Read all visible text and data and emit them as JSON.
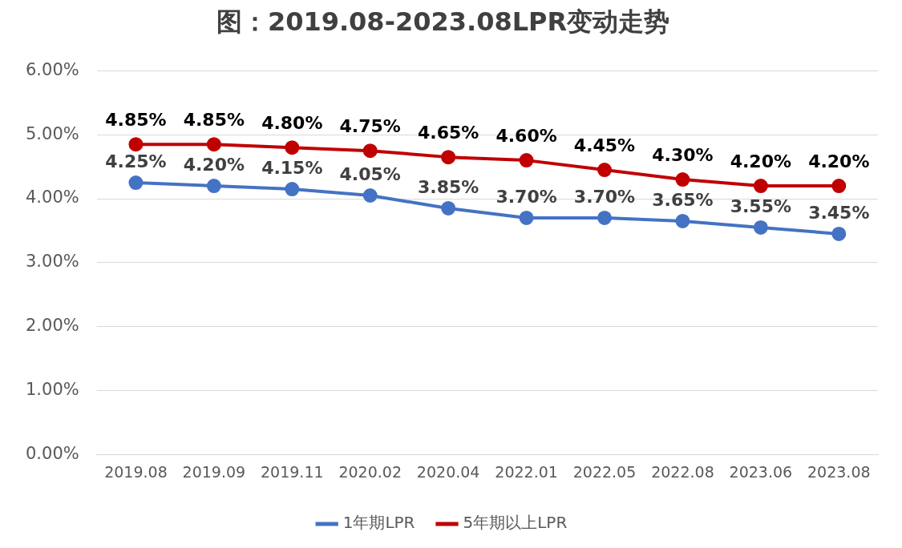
{
  "chart_data": {
    "type": "line",
    "title": "图：2019.08-2023.08LPR变动走势",
    "categories": [
      "2019.08",
      "2019.09",
      "2019.11",
      "2020.02",
      "2020.04",
      "2022.01",
      "2022.05",
      "2022.08",
      "2023.06",
      "2023.08"
    ],
    "series": [
      {
        "name": "1年期LPR",
        "color": "#4472c4",
        "values": [
          4.25,
          4.2,
          4.15,
          4.05,
          3.85,
          3.7,
          3.7,
          3.65,
          3.55,
          3.45
        ],
        "value_labels": [
          "4.25%",
          "4.20%",
          "4.15%",
          "4.05%",
          "3.85%",
          "3.70%",
          "3.70%",
          "3.65%",
          "3.55%",
          "3.45%"
        ]
      },
      {
        "name": "5年期以上LPR",
        "color": "#c00000",
        "values": [
          4.85,
          4.85,
          4.8,
          4.75,
          4.65,
          4.6,
          4.45,
          4.3,
          4.2,
          4.2
        ],
        "value_labels": [
          "4.85%",
          "4.85%",
          "4.80%",
          "4.75%",
          "4.65%",
          "4.60%",
          "4.45%",
          "4.30%",
          "4.20%",
          "4.20%"
        ]
      }
    ],
    "ylim": [
      0,
      6
    ],
    "yticks": [
      {
        "value": 0,
        "label": "0.00%"
      },
      {
        "value": 1,
        "label": "1.00%"
      },
      {
        "value": 2,
        "label": "2.00%"
      },
      {
        "value": 3,
        "label": "3.00%"
      },
      {
        "value": 4,
        "label": "4.00%"
      },
      {
        "value": 5,
        "label": "5.00%"
      },
      {
        "value": 6,
        "label": "6.00%"
      }
    ],
    "grid": "y",
    "legend": "bottom",
    "marker": "circle",
    "line_style": "solid"
  }
}
